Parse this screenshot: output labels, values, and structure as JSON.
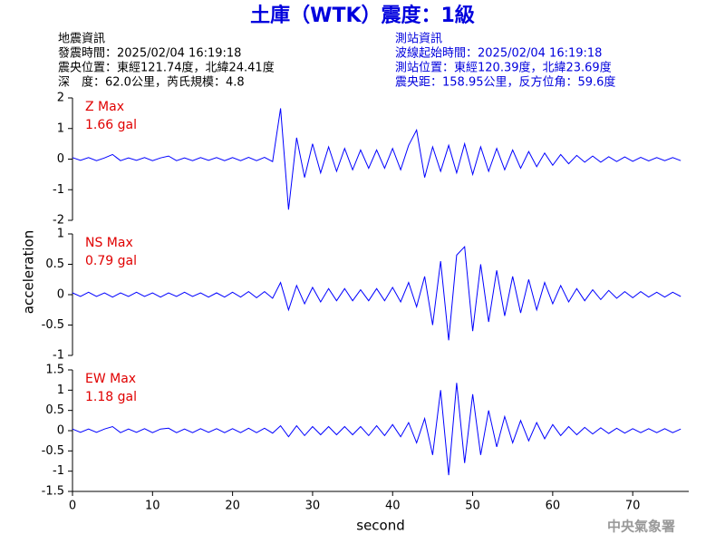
{
  "title": "土庫（WTK）震度：1級",
  "event_info": [
    "地震資訊",
    "發震時間：2025/02/04 16:19:18",
    "震央位置：東經121.74度，北緯24.41度",
    "深　度：62.0公里，芮氏規模：4.8"
  ],
  "station_info": [
    "測站資訊",
    "波線起始時間：2025/02/04 16:19:18",
    "測站位置：東經120.39度，北緯23.69度",
    "震央距：158.95公里，反方位角：59.6度"
  ],
  "footer": "中央氣象署",
  "chart_data": [
    {
      "type": "line",
      "label": "Z Max",
      "max": "1.66 gal",
      "label_color": "#e00000",
      "color": "#0000ff",
      "xlim": [
        0,
        77
      ],
      "ylim": [
        -2,
        2
      ],
      "yticks": [
        -2,
        -1,
        0,
        1,
        2
      ],
      "x": [
        0,
        1,
        2,
        3,
        4,
        5,
        6,
        7,
        8,
        9,
        10,
        11,
        12,
        13,
        14,
        15,
        16,
        17,
        18,
        19,
        20,
        21,
        22,
        23,
        24,
        25,
        26,
        27,
        28,
        29,
        30,
        31,
        32,
        33,
        34,
        35,
        36,
        37,
        38,
        39,
        40,
        41,
        42,
        43,
        44,
        45,
        46,
        47,
        48,
        49,
        50,
        51,
        52,
        53,
        54,
        55,
        56,
        57,
        58,
        59,
        60,
        61,
        62,
        63,
        64,
        65,
        66,
        67,
        68,
        69,
        70,
        71,
        72,
        73,
        74,
        75,
        76
      ],
      "values": [
        0.05,
        -0.04,
        0.05,
        -0.05,
        0.04,
        0.15,
        -0.05,
        0.04,
        -0.04,
        0.05,
        -0.05,
        0.04,
        0.1,
        -0.05,
        0.04,
        -0.05,
        0.05,
        -0.04,
        0.05,
        -0.05,
        0.05,
        -0.05,
        0.06,
        -0.05,
        0.06,
        -0.08,
        1.66,
        -1.65,
        0.7,
        -0.6,
        0.5,
        -0.45,
        0.4,
        -0.4,
        0.35,
        -0.35,
        0.3,
        -0.3,
        0.3,
        -0.3,
        0.35,
        -0.35,
        0.45,
        0.95,
        -0.6,
        0.4,
        -0.4,
        0.45,
        -0.45,
        0.5,
        -0.5,
        0.4,
        -0.4,
        0.35,
        -0.35,
        0.3,
        -0.3,
        0.25,
        -0.25,
        0.2,
        -0.2,
        0.15,
        -0.15,
        0.12,
        -0.1,
        0.1,
        -0.1,
        0.08,
        -0.08,
        0.07,
        -0.07,
        0.06,
        -0.06,
        0.05,
        -0.05,
        0.05,
        -0.05
      ]
    },
    {
      "type": "line",
      "label": "NS Max",
      "max": "0.79 gal",
      "label_color": "#e00000",
      "color": "#0000ff",
      "ylabel": "acceleration",
      "xlim": [
        0,
        77
      ],
      "ylim": [
        -1,
        1
      ],
      "yticks": [
        -1,
        -0.5,
        0,
        0.5,
        1
      ],
      "x": [
        0,
        1,
        2,
        3,
        4,
        5,
        6,
        7,
        8,
        9,
        10,
        11,
        12,
        13,
        14,
        15,
        16,
        17,
        18,
        19,
        20,
        21,
        22,
        23,
        24,
        25,
        26,
        27,
        28,
        29,
        30,
        31,
        32,
        33,
        34,
        35,
        36,
        37,
        38,
        39,
        40,
        41,
        42,
        43,
        44,
        45,
        46,
        47,
        48,
        49,
        50,
        51,
        52,
        53,
        54,
        55,
        56,
        57,
        58,
        59,
        60,
        61,
        62,
        63,
        64,
        65,
        66,
        67,
        68,
        69,
        70,
        71,
        72,
        73,
        74,
        75,
        76
      ],
      "values": [
        0.03,
        -0.03,
        0.04,
        -0.03,
        0.03,
        -0.04,
        0.03,
        -0.03,
        0.04,
        -0.03,
        0.03,
        -0.04,
        0.03,
        -0.03,
        0.04,
        -0.03,
        0.03,
        -0.04,
        0.03,
        -0.04,
        0.04,
        -0.04,
        0.05,
        -0.05,
        0.05,
        -0.06,
        0.2,
        -0.25,
        0.15,
        -0.15,
        0.12,
        -0.12,
        0.1,
        -0.1,
        0.1,
        -0.1,
        0.08,
        -0.1,
        0.1,
        -0.1,
        0.12,
        -0.12,
        0.2,
        -0.2,
        0.3,
        -0.5,
        0.55,
        -0.75,
        0.65,
        0.79,
        -0.6,
        0.5,
        -0.45,
        0.4,
        -0.35,
        0.3,
        -0.3,
        0.25,
        -0.25,
        0.2,
        -0.15,
        0.15,
        -0.12,
        0.1,
        -0.1,
        0.08,
        -0.08,
        0.07,
        -0.06,
        0.05,
        -0.05,
        0.05,
        -0.04,
        0.04,
        -0.04,
        0.04,
        -0.03
      ]
    },
    {
      "type": "line",
      "label": "EW Max",
      "max": "1.18 gal",
      "label_color": "#e00000",
      "color": "#0000ff",
      "xlabel": "second",
      "xlim": [
        0,
        77
      ],
      "ylim": [
        -1.5,
        1.5
      ],
      "yticks": [
        -1.5,
        -1,
        -0.5,
        0,
        0.5,
        1,
        1.5
      ],
      "xticks": [
        0,
        10,
        20,
        30,
        40,
        50,
        60,
        70
      ],
      "x": [
        0,
        1,
        2,
        3,
        4,
        5,
        6,
        7,
        8,
        9,
        10,
        11,
        12,
        13,
        14,
        15,
        16,
        17,
        18,
        19,
        20,
        21,
        22,
        23,
        24,
        25,
        26,
        27,
        28,
        29,
        30,
        31,
        32,
        33,
        34,
        35,
        36,
        37,
        38,
        39,
        40,
        41,
        42,
        43,
        44,
        45,
        46,
        47,
        48,
        49,
        50,
        51,
        52,
        53,
        54,
        55,
        56,
        57,
        58,
        59,
        60,
        61,
        62,
        63,
        64,
        65,
        66,
        67,
        68,
        69,
        70,
        71,
        72,
        73,
        74,
        75,
        76
      ],
      "values": [
        0.04,
        -0.04,
        0.04,
        -0.04,
        0.04,
        0.1,
        -0.05,
        0.04,
        -0.04,
        0.05,
        -0.05,
        0.04,
        0.06,
        -0.05,
        0.04,
        -0.05,
        0.05,
        -0.04,
        0.05,
        -0.05,
        0.05,
        -0.05,
        0.06,
        -0.05,
        0.06,
        -0.06,
        0.12,
        -0.15,
        0.12,
        -0.12,
        0.1,
        -0.1,
        0.1,
        -0.1,
        0.1,
        -0.1,
        0.1,
        -0.12,
        0.12,
        -0.12,
        0.15,
        -0.15,
        0.2,
        -0.3,
        0.3,
        -0.6,
        1.0,
        -1.1,
        1.18,
        -0.8,
        0.9,
        -0.6,
        0.5,
        -0.4,
        0.35,
        -0.3,
        0.25,
        -0.25,
        0.2,
        -0.2,
        0.15,
        -0.12,
        0.1,
        -0.1,
        0.08,
        -0.08,
        0.07,
        -0.07,
        0.06,
        -0.06,
        0.05,
        -0.05,
        0.05,
        -0.05,
        0.05,
        -0.05,
        0.04
      ]
    }
  ]
}
